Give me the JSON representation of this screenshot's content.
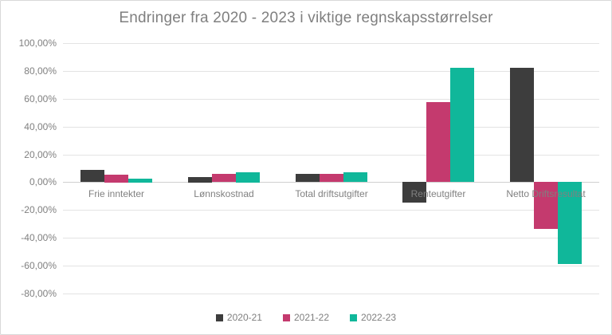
{
  "window": {
    "background": "#ffffff",
    "border_color": "#d9d9d9"
  },
  "chart_data": {
    "type": "bar",
    "title": "Endringer fra 2020 - 2023 i viktige regnskapsstørrelser",
    "categories": [
      "Frie inntekter",
      "Lønnskostnad",
      "Total driftsutgifter",
      "Renteutgifter",
      "Netto Driftsresultat"
    ],
    "series": [
      {
        "name": "2020-21",
        "color": "#3d3d3d",
        "values": [
          8.6,
          3.9,
          5.8,
          -15.0,
          82.0
        ]
      },
      {
        "name": "2021-22",
        "color": "#c43a6e",
        "values": [
          5.6,
          5.9,
          5.8,
          57.5,
          -34.0
        ]
      },
      {
        "name": "2022-23",
        "color": "#10b79a",
        "values": [
          2.7,
          7.4,
          7.1,
          82.0,
          -59.0
        ]
      }
    ],
    "y_axis": {
      "min": -80,
      "max": 100,
      "step": 20,
      "tick_labels": [
        "100,00%",
        "80,00%",
        "60,00%",
        "40,00%",
        "20,00%",
        "0,00%",
        "-20,00%",
        "-40,00%",
        "-60,00%",
        "-80,00%"
      ]
    },
    "x_axis_label": "",
    "y_axis_label": "",
    "grid": true,
    "legend_position": "bottom",
    "legend_labels": [
      "2020-21",
      "2021-22",
      "2022-23"
    ],
    "colors": {
      "title_text": "#7f7f7f",
      "axis_text": "#808080",
      "gridline": "#e3e3e3",
      "zero_line": "#cfcfcf"
    }
  }
}
